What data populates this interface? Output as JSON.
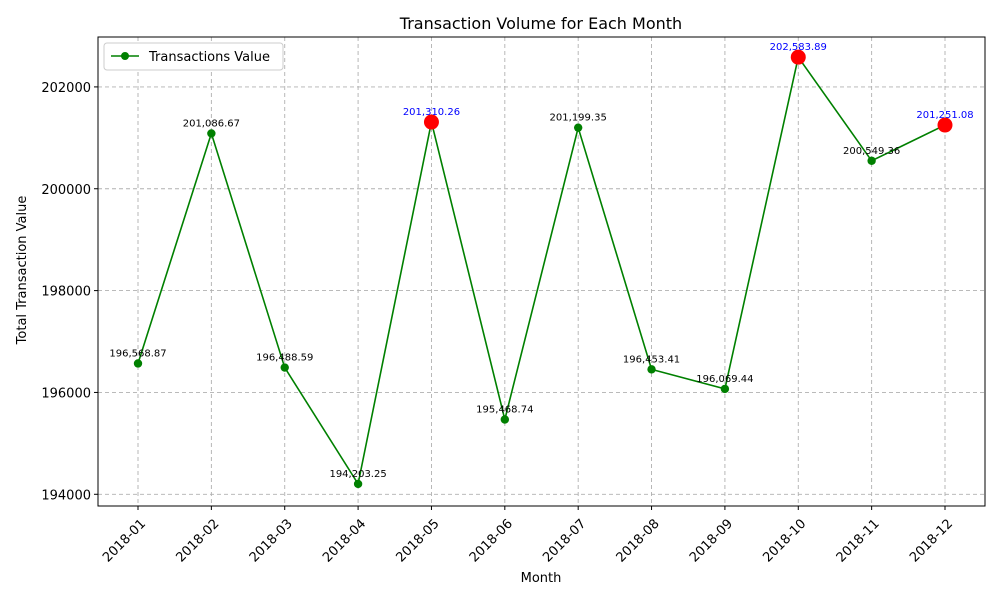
{
  "chart_data": {
    "type": "line",
    "title": "Transaction Volume for Each Month",
    "xlabel": "Month",
    "ylabel": "Total Transaction Value",
    "categories": [
      "2018-01",
      "2018-02",
      "2018-03",
      "2018-04",
      "2018-05",
      "2018-06",
      "2018-07",
      "2018-08",
      "2018-09",
      "2018-10",
      "2018-11",
      "2018-12"
    ],
    "series": [
      {
        "name": "Transactions Value",
        "color": "#008000",
        "values": [
          196568.87,
          201086.67,
          196488.59,
          194203.25,
          201310.26,
          195468.74,
          201199.35,
          196453.41,
          196069.44,
          202583.89,
          200549.36,
          201251.08
        ],
        "labels": [
          "196,568.87",
          "201,086.67",
          "196,488.59",
          "194,203.25",
          "201,310.26",
          "195,468.74",
          "201,199.35",
          "196,453.41",
          "196,069.44",
          "202,583.89",
          "200,549.36",
          "201,251.08"
        ]
      }
    ],
    "highlighted_indices": [
      4,
      9,
      11
    ],
    "highlight_color": "#ff0000",
    "highlight_label_color": "#0000ff",
    "normal_label_color": "#000000",
    "ylim": [
      193770,
      202980
    ],
    "yticks": [
      194000,
      196000,
      198000,
      200000,
      202000
    ],
    "yticks_labels": [
      "194000",
      "196000",
      "198000",
      "200000",
      "202000"
    ],
    "grid": true,
    "legend_position": "upper-left"
  }
}
